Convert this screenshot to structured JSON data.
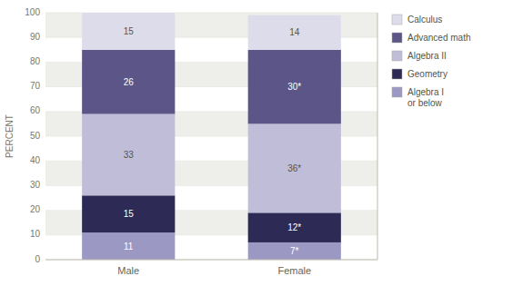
{
  "chart_data": {
    "type": "bar",
    "stacked": true,
    "data_labels": true,
    "grid": true,
    "legend": "right",
    "y_label": "PERCENT",
    "categories": [
      "Male",
      "Female"
    ],
    "series": [
      {
        "name": "Algebra I\nor below",
        "color": "#9b99c3",
        "values": [
          11,
          7
        ],
        "value_labels": [
          "11",
          "7*"
        ]
      },
      {
        "name": "Geometry",
        "color": "#2d2b55",
        "values": [
          15,
          12
        ],
        "value_labels": [
          "15",
          "12*"
        ]
      },
      {
        "name": "Algebra II",
        "color": "#c0bdd8",
        "values": [
          33,
          36
        ],
        "value_labels": [
          "33",
          "36*"
        ]
      },
      {
        "name": "Advanced math",
        "color": "#5c5688",
        "values": [
          26,
          30
        ],
        "value_labels": [
          "26",
          "30*"
        ]
      },
      {
        "name": "Calculus",
        "color": "#dddceb",
        "values": [
          15,
          14
        ],
        "value_labels": [
          "15",
          "14"
        ]
      }
    ],
    "ylim": [
      0,
      100
    ],
    "yticks": [
      0,
      10,
      20,
      30,
      40,
      50,
      60,
      70,
      80,
      90,
      100
    ]
  }
}
